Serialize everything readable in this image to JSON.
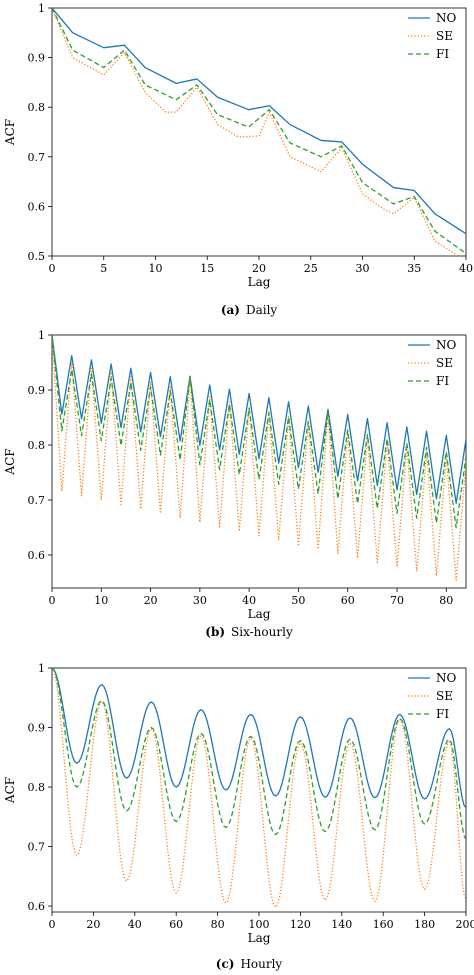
{
  "chart_data": [
    {
      "type": "line",
      "caption_tag": "(a)",
      "caption": "Daily",
      "xlabel": "Lag",
      "ylabel": "ACF",
      "xlim": [
        0,
        40
      ],
      "ylim": [
        0.5,
        1.0
      ],
      "xticks": [
        0,
        5,
        10,
        15,
        20,
        25,
        30,
        35,
        40
      ],
      "yticks": [
        0.5,
        0.6,
        0.7,
        0.8,
        0.9,
        1.0
      ],
      "ytick_labels": [
        "0.5",
        "0.6",
        "0.7",
        "0.8",
        "0.9",
        "1"
      ],
      "legend": "top-right",
      "series": [
        {
          "name": "NO",
          "color": "#1f77b4",
          "style": "solid",
          "x": [
            0,
            2,
            5,
            7,
            9,
            12,
            14,
            16,
            19,
            21,
            23,
            26,
            28,
            30,
            33,
            35,
            37,
            40
          ],
          "y": [
            1.0,
            0.95,
            0.92,
            0.925,
            0.88,
            0.848,
            0.857,
            0.82,
            0.795,
            0.803,
            0.765,
            0.733,
            0.73,
            0.685,
            0.638,
            0.632,
            0.585,
            0.545
          ]
        },
        {
          "name": "SE",
          "color": "#ff7f0e",
          "style": "dotted",
          "x": [
            0,
            2,
            5,
            7,
            9,
            11,
            12,
            14,
            16,
            18,
            20,
            21,
            23,
            26,
            28,
            30,
            32,
            33,
            35,
            37,
            40
          ],
          "y": [
            1.0,
            0.9,
            0.865,
            0.91,
            0.83,
            0.79,
            0.79,
            0.84,
            0.765,
            0.74,
            0.742,
            0.79,
            0.7,
            0.67,
            0.718,
            0.625,
            0.595,
            0.585,
            0.618,
            0.53,
            0.49
          ]
        },
        {
          "name": "FI",
          "color": "#2ca02c",
          "style": "dashed",
          "x": [
            0,
            2,
            5,
            7,
            9,
            12,
            14,
            16,
            19,
            21,
            23,
            26,
            28,
            30,
            33,
            35,
            37,
            40
          ],
          "y": [
            1.0,
            0.915,
            0.88,
            0.915,
            0.845,
            0.815,
            0.845,
            0.785,
            0.76,
            0.795,
            0.728,
            0.7,
            0.722,
            0.648,
            0.605,
            0.62,
            0.55,
            0.505
          ]
        }
      ]
    },
    {
      "type": "line",
      "caption_tag": "(b)",
      "caption": "Six-hourly",
      "xlabel": "Lag",
      "ylabel": "ACF",
      "xlim": [
        0,
        84
      ],
      "ylim": [
        0.54,
        1.0
      ],
      "xticks": [
        0,
        10,
        20,
        30,
        40,
        50,
        60,
        70,
        80
      ],
      "yticks": [
        0.6,
        0.7,
        0.8,
        0.9,
        1.0
      ],
      "ytick_labels": [
        "0.6",
        "0.7",
        "0.8",
        "0.9",
        "1"
      ],
      "legend": "top-right",
      "series": [
        {
          "name": "NO",
          "color": "#1f77b4",
          "style": "solid",
          "period": 4,
          "lag_max": 84,
          "start": 1.0,
          "first_trough": 0.86,
          "last_trough": 0.69,
          "first_peak": 0.97,
          "last_peak": 0.81,
          "note_peaks": {
            "28": 0.925,
            "56": 0.865
          }
        },
        {
          "name": "SE",
          "color": "#ff7f0e",
          "style": "dotted",
          "period": 4,
          "lag_max": 84,
          "start": 1.0,
          "first_trough": 0.72,
          "last_trough": 0.55,
          "first_peak": 0.96,
          "last_peak": 0.77,
          "note_peaks": {
            "28": 0.92,
            "56": 0.86
          }
        },
        {
          "name": "FI",
          "color": "#2ca02c",
          "style": "dashed",
          "period": 4,
          "lag_max": 84,
          "start": 1.0,
          "first_trough": 0.83,
          "last_trough": 0.645,
          "first_peak": 0.945,
          "last_peak": 0.78,
          "note_peaks": {
            "28": 0.925,
            "56": 0.86
          }
        }
      ]
    },
    {
      "type": "line",
      "caption_tag": "(c)",
      "caption": "Hourly",
      "xlabel": "Lag",
      "ylabel": "ACF",
      "xlim": [
        0,
        200
      ],
      "ylim": [
        0.59,
        1.0
      ],
      "xticks": [
        0,
        20,
        40,
        60,
        80,
        100,
        120,
        140,
        160,
        180,
        200
      ],
      "yticks": [
        0.6,
        0.7,
        0.8,
        0.9,
        1.0
      ],
      "ytick_labels": [
        "0.6",
        "0.7",
        "0.8",
        "0.9",
        "1"
      ],
      "legend": "top-right",
      "series": [
        {
          "name": "NO",
          "color": "#1f77b4",
          "style": "solid",
          "peaks": [
            [
              24,
              0.972
            ],
            [
              48,
              0.943
            ],
            [
              72,
              0.93
            ],
            [
              96,
              0.922
            ],
            [
              120,
              0.918
            ],
            [
              144,
              0.916
            ],
            [
              168,
              0.922
            ],
            [
              192,
              0.898
            ]
          ],
          "troughs": [
            [
              12,
              0.84
            ],
            [
              36,
              0.815
            ],
            [
              60,
              0.8
            ],
            [
              84,
              0.795
            ],
            [
              108,
              0.785
            ],
            [
              132,
              0.783
            ],
            [
              156,
              0.782
            ],
            [
              180,
              0.78
            ]
          ],
          "end": [
            200,
            0.765
          ]
        },
        {
          "name": "SE",
          "color": "#ff7f0e",
          "style": "dotted",
          "peaks": [
            [
              24,
              0.944
            ],
            [
              48,
              0.898
            ],
            [
              72,
              0.886
            ],
            [
              96,
              0.882
            ],
            [
              120,
              0.874
            ],
            [
              144,
              0.874
            ],
            [
              168,
              0.914
            ],
            [
              192,
              0.876
            ]
          ],
          "troughs": [
            [
              12,
              0.685
            ],
            [
              36,
              0.642
            ],
            [
              60,
              0.622
            ],
            [
              84,
              0.605
            ],
            [
              108,
              0.598
            ],
            [
              132,
              0.61
            ],
            [
              156,
              0.608
            ],
            [
              180,
              0.628
            ]
          ],
          "end": [
            200,
            0.61
          ]
        },
        {
          "name": "FI",
          "color": "#2ca02c",
          "style": "dashed",
          "peaks": [
            [
              24,
              0.945
            ],
            [
              48,
              0.9
            ],
            [
              72,
              0.89
            ],
            [
              96,
              0.885
            ],
            [
              120,
              0.878
            ],
            [
              144,
              0.88
            ],
            [
              168,
              0.915
            ],
            [
              192,
              0.88
            ]
          ],
          "troughs": [
            [
              12,
              0.8
            ],
            [
              36,
              0.76
            ],
            [
              60,
              0.742
            ],
            [
              84,
              0.732
            ],
            [
              108,
              0.72
            ],
            [
              132,
              0.725
            ],
            [
              156,
              0.728
            ],
            [
              180,
              0.738
            ]
          ],
          "end": [
            200,
            0.712
          ]
        }
      ]
    }
  ]
}
